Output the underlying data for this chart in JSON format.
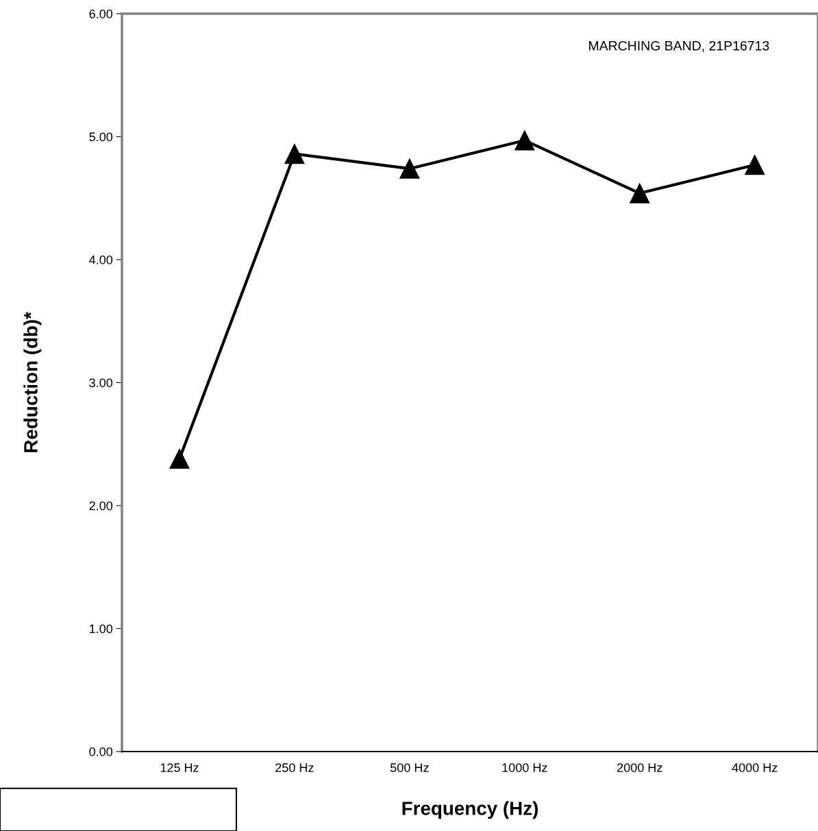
{
  "chart_data": {
    "type": "line",
    "xlabel": "Frequency (Hz)",
    "ylabel": "Reduction (db)*",
    "categories": [
      "125 Hz",
      "250 Hz",
      "500 Hz",
      "1000 Hz",
      "2000 Hz",
      "4000 Hz"
    ],
    "series": [
      {
        "color": "#000000",
        "values": [
          2.38,
          4.86,
          4.74,
          4.97,
          4.54,
          4.77
        ]
      }
    ],
    "ylim": [
      0,
      6
    ],
    "yticks": [
      {
        "value": 0,
        "label": "0.00"
      },
      {
        "value": 1,
        "label": "1.00"
      },
      {
        "value": 2,
        "label": "2.00"
      },
      {
        "value": 3,
        "label": "3.00"
      },
      {
        "value": 4,
        "label": "4.00"
      },
      {
        "value": 5,
        "label": "5.00"
      },
      {
        "value": 6,
        "label": "6.00"
      }
    ],
    "annotations": [
      "MARCHING BAND, 21P16713"
    ],
    "marker": "triangle",
    "line_style": "solid",
    "grid": false,
    "legend": false
  }
}
